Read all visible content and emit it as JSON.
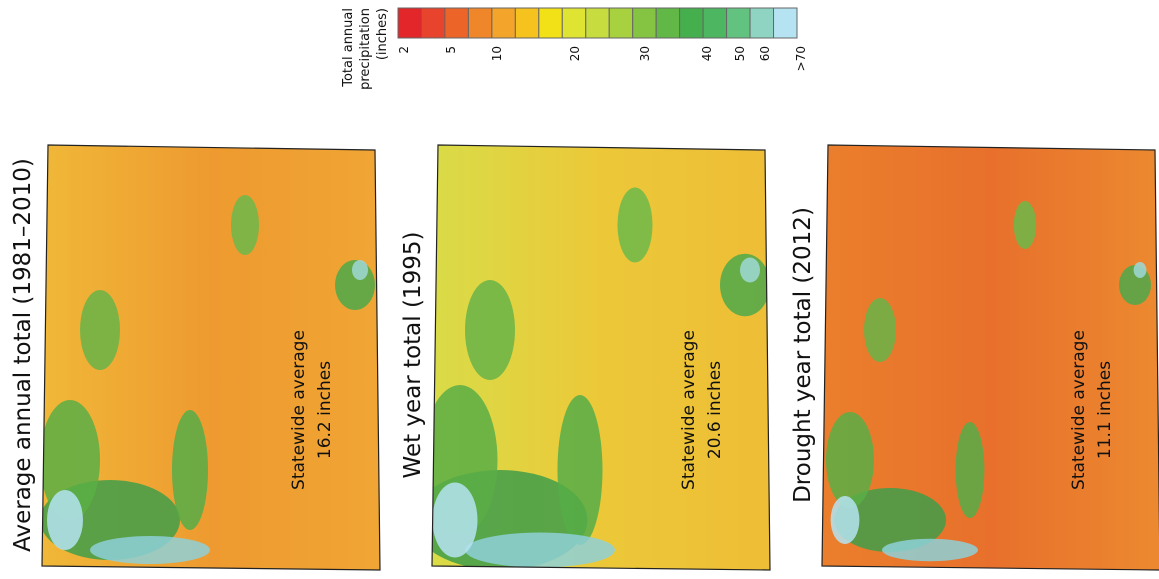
{
  "legend": {
    "title_lines": [
      "Total annual",
      "precipitation",
      "(inches)"
    ],
    "colors": [
      "#e3262a",
      "#e8432c",
      "#ec6428",
      "#f0862a",
      "#f3a42a",
      "#f5c21e",
      "#f2e116",
      "#dfe433",
      "#c7dc3e",
      "#a8d13f",
      "#85c443",
      "#62b847",
      "#45ae4d",
      "#4cb661",
      "#62c27f",
      "#8fd4c2",
      "#b5e3f2"
    ],
    "ticks": [
      "2",
      "5",
      "10",
      "20",
      "30",
      "40",
      "50",
      "60",
      ">70"
    ]
  },
  "maps": [
    {
      "title": "Average annual total (1981–2010)",
      "annotation": [
        "Statewide average",
        "16.2 inches"
      ]
    },
    {
      "title": "Wet year total (1995)",
      "annotation": [
        "Statewide average",
        "20.6 inches"
      ]
    },
    {
      "title": "Drought year total (2012)",
      "annotation": [
        "Statewide average",
        "11.1 inches"
      ]
    }
  ]
}
